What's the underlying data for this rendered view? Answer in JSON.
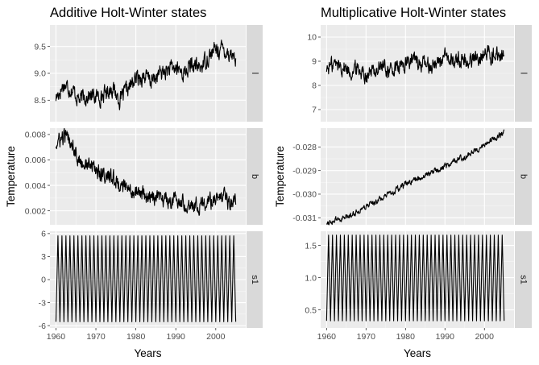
{
  "chart_data": [
    {
      "type": "line",
      "title": "Additive Holt-Winter states",
      "xlabel": "Years",
      "ylabel": "Temperature",
      "xlim": [
        1958.5,
        2007.5
      ],
      "x_ticks": [
        1960,
        1970,
        1980,
        1990,
        2000
      ],
      "facets": [
        {
          "strip": "l",
          "ylim": [
            8.1,
            9.9
          ],
          "y_ticks": [
            8.5,
            9.0,
            9.5
          ],
          "y_tick_labels": [
            "8.5",
            "9.0",
            "9.5"
          ],
          "shape": "noisy",
          "start_year": 1960,
          "end_year": 2005,
          "x": [
            1960,
            1962,
            1964,
            1966,
            1968,
            1970,
            1972,
            1974,
            1976,
            1978,
            1980,
            1982,
            1984,
            1986,
            1988,
            1990,
            1992,
            1994,
            1996,
            1998,
            2000,
            2002,
            2004,
            2005
          ],
          "values": [
            8.55,
            8.8,
            8.7,
            8.5,
            8.6,
            8.55,
            8.6,
            8.75,
            8.5,
            8.7,
            8.9,
            8.95,
            8.85,
            9.0,
            9.05,
            9.1,
            9.0,
            9.15,
            9.1,
            9.3,
            9.45,
            9.45,
            9.35,
            9.3
          ]
        },
        {
          "strip": "b",
          "ylim": [
            0.0009,
            0.0085
          ],
          "y_ticks": [
            0.002,
            0.004,
            0.006,
            0.008
          ],
          "y_tick_labels": [
            "0.002",
            "0.004",
            "0.006",
            "0.008"
          ],
          "shape": "noisy",
          "start_year": 1960,
          "end_year": 2005,
          "x": [
            1960,
            1962,
            1964,
            1966,
            1968,
            1970,
            1972,
            1974,
            1976,
            1978,
            1980,
            1982,
            1984,
            1986,
            1988,
            1990,
            1992,
            1994,
            1996,
            1998,
            2000,
            2002,
            2004,
            2005
          ],
          "values": [
            0.0072,
            0.0078,
            0.0075,
            0.0058,
            0.0056,
            0.0053,
            0.0048,
            0.0046,
            0.0041,
            0.0036,
            0.0035,
            0.0032,
            0.003,
            0.0028,
            0.0029,
            0.0028,
            0.0027,
            0.0026,
            0.0025,
            0.0027,
            0.0028,
            0.0029,
            0.0025,
            0.0028
          ]
        },
        {
          "strip": "s1",
          "ylim": [
            -6.3,
            6.3
          ],
          "y_ticks": [
            -6,
            -3,
            0,
            3,
            6
          ],
          "y_tick_labels": [
            "-6",
            "-3",
            "0",
            "3",
            "6"
          ],
          "shape": "seasonal",
          "start_year": 1960,
          "end_year": 2005,
          "seasonal_low": -5.5,
          "seasonal_high": 5.7
        }
      ]
    },
    {
      "type": "line",
      "title": "Multiplicative Holt-Winter states",
      "xlabel": "Years",
      "ylabel": "Temperature",
      "xlim": [
        1958.5,
        2007.5
      ],
      "x_ticks": [
        1960,
        1970,
        1980,
        1990,
        2000
      ],
      "facets": [
        {
          "strip": "l",
          "ylim": [
            6.5,
            10.5
          ],
          "y_ticks": [
            7,
            8,
            9,
            10
          ],
          "y_tick_labels": [
            "7",
            "8",
            "9",
            "10"
          ],
          "shape": "noisy",
          "start_year": 1960,
          "end_year": 2005,
          "x": [
            1960,
            1962,
            1964,
            1966,
            1968,
            1970,
            1972,
            1974,
            1976,
            1978,
            1980,
            1982,
            1984,
            1986,
            1988,
            1990,
            1992,
            1994,
            1996,
            1998,
            2000,
            2002,
            2004,
            2005
          ],
          "values": [
            8.7,
            8.9,
            8.8,
            8.6,
            8.7,
            8.5,
            8.6,
            8.8,
            8.6,
            8.7,
            8.9,
            9.1,
            8.9,
            8.8,
            9.0,
            9.1,
            9.0,
            9.1,
            9.0,
            9.2,
            9.3,
            9.3,
            9.2,
            9.2
          ]
        },
        {
          "strip": "b",
          "ylim": [
            -0.0313,
            -0.0272
          ],
          "y_ticks": [
            -0.031,
            -0.03,
            -0.029,
            -0.028
          ],
          "y_tick_labels": [
            "-0.031",
            "-0.030",
            "-0.029",
            "-0.028"
          ],
          "shape": "noisy",
          "start_year": 1960,
          "end_year": 2005,
          "x": [
            1960,
            1965,
            1970,
            1975,
            1980,
            1985,
            1990,
            1995,
            2000,
            2005
          ],
          "values": [
            -0.0312,
            -0.031,
            -0.0305,
            -0.0301,
            -0.0296,
            -0.0292,
            -0.0288,
            -0.0284,
            -0.0279,
            -0.0274
          ]
        },
        {
          "strip": "s1",
          "ylim": [
            0.22,
            1.72
          ],
          "y_ticks": [
            0.5,
            1.0,
            1.5
          ],
          "y_tick_labels": [
            "0.5",
            "1.0",
            "1.5"
          ],
          "shape": "seasonal",
          "start_year": 1960,
          "end_year": 2005,
          "seasonal_low": 0.33,
          "seasonal_high": 1.66
        }
      ]
    }
  ]
}
